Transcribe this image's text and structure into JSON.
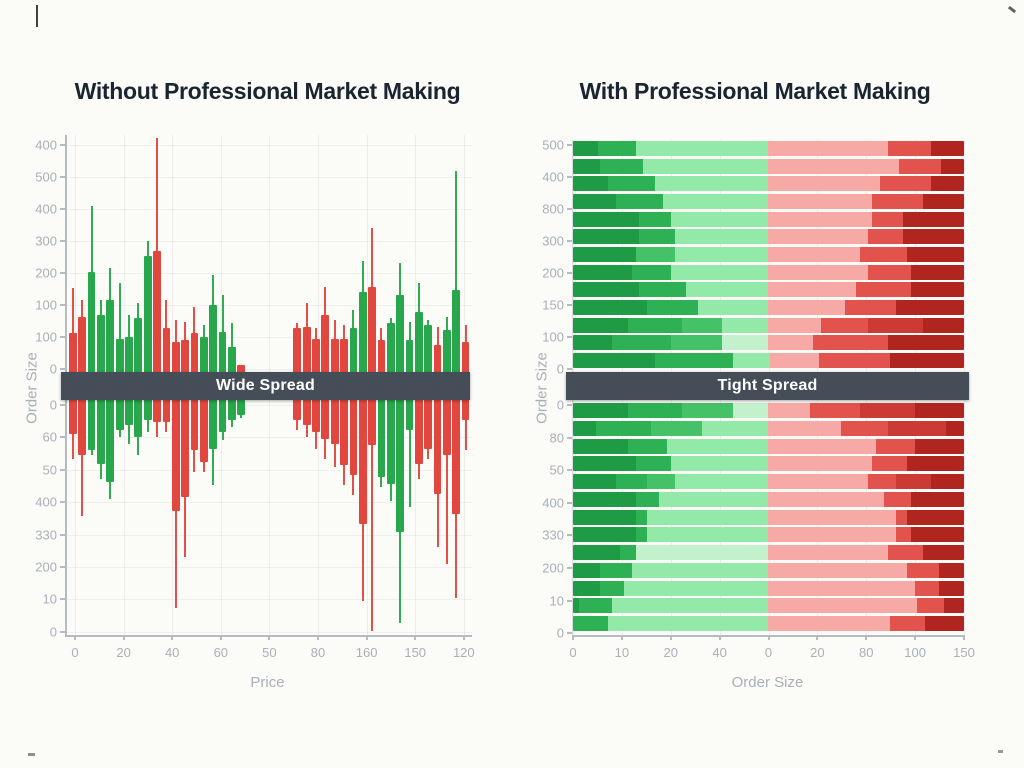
{
  "figure": {
    "background": "#fbfbf8",
    "band_color": "#454d58",
    "title_color": "#1b2530",
    "axis_text_color": "#a9b0b8"
  },
  "chart_data": [
    {
      "type": "bar",
      "orientation": "vertical-mirrored-depth",
      "title": "Without Professional Market Making",
      "band_label": "Wide Spread",
      "xlabel": "Price",
      "ylabel": "Order Size",
      "x_ticks": [
        "0",
        "20",
        "40",
        "60",
        "50",
        "80",
        "160",
        "150",
        "120"
      ],
      "y_ticks_upper": [
        "400",
        "500",
        "400",
        "300",
        "200",
        "100",
        "100",
        "0"
      ],
      "y_ticks_lower": [
        "0",
        "60",
        "50",
        "400",
        "330",
        "200",
        "10",
        "0"
      ],
      "colors": {
        "g": "#28a74c",
        "r": "#e2473f"
      },
      "bars_above": [
        [
          "r",
          115,
          250
        ],
        [
          "r",
          165,
          215
        ],
        [
          "g",
          300,
          495
        ],
        [
          "g",
          170,
          215
        ],
        [
          "g",
          215,
          310
        ],
        [
          "g",
          100,
          265
        ],
        [
          "g",
          105,
          170
        ],
        [
          "g",
          160,
          205
        ],
        [
          "g",
          345,
          390
        ],
        [
          "r",
          360,
          700
        ],
        [
          "r",
          130,
          215
        ],
        [
          "r",
          90,
          155
        ],
        [
          "r",
          95,
          150
        ],
        [
          "r",
          115,
          195
        ],
        [
          "g",
          105,
          140
        ],
        [
          "g",
          200,
          290
        ],
        [
          "g",
          120,
          230
        ],
        [
          "g",
          75,
          145
        ],
        [
          "r",
          20,
          20
        ],
        null,
        null,
        null,
        null,
        null,
        [
          "r",
          130,
          145
        ],
        [
          "r",
          135,
          205
        ],
        [
          "r",
          100,
          130
        ],
        [
          "r",
          170,
          255
        ],
        [
          "r",
          100,
          155
        ],
        [
          "r",
          100,
          140
        ],
        [
          "g",
          130,
          185
        ],
        [
          "g",
          240,
          330
        ],
        [
          "r",
          255,
          430
        ],
        [
          "r",
          95,
          130
        ],
        [
          "g",
          145,
          160
        ],
        [
          "g",
          230,
          325
        ],
        [
          "g",
          95,
          150
        ],
        [
          "g",
          180,
          265
        ],
        [
          "g",
          140,
          155
        ],
        [
          "r",
          80,
          135
        ],
        [
          "g",
          125,
          165
        ],
        [
          "g",
          245,
          600
        ],
        [
          "r",
          90,
          140
        ]
      ],
      "bars_below": [
        [
          "r",
          100,
          175
        ],
        [
          "r",
          165,
          345
        ],
        [
          "g",
          150,
          165
        ],
        [
          "g",
          190,
          235
        ],
        [
          "g",
          245,
          295
        ],
        [
          "g",
          90,
          110
        ],
        [
          "g",
          75,
          130
        ],
        [
          "g",
          110,
          165
        ],
        [
          "g",
          60,
          95
        ],
        [
          "r",
          65,
          110
        ],
        [
          "r",
          65,
          95
        ],
        [
          "r",
          330,
          620
        ],
        [
          "r",
          290,
          470
        ],
        [
          "r",
          150,
          215
        ],
        [
          "r",
          185,
          215
        ],
        [
          "g",
          145,
          255
        ],
        [
          "g",
          95,
          120
        ],
        [
          "g",
          60,
          80
        ],
        [
          "g",
          45,
          55
        ],
        null,
        null,
        null,
        null,
        null,
        [
          "r",
          60,
          90
        ],
        [
          "r",
          75,
          110
        ],
        [
          "r",
          95,
          145
        ],
        [
          "r",
          115,
          175
        ],
        [
          "r",
          130,
          200
        ],
        [
          "r",
          195,
          255
        ],
        [
          "r",
          225,
          285
        ],
        [
          "r",
          370,
          600
        ],
        [
          "r",
          135,
          690
        ],
        [
          "g",
          230,
          260
        ],
        [
          "g",
          250,
          300
        ],
        [
          "g",
          395,
          665
        ],
        [
          "g",
          90,
          320
        ],
        [
          "r",
          190,
          235
        ],
        [
          "r",
          145,
          175
        ],
        [
          "r",
          280,
          440
        ],
        [
          "r",
          165,
          490
        ],
        [
          "r",
          340,
          590
        ],
        [
          "r",
          60,
          150
        ]
      ]
    },
    {
      "type": "bar",
      "orientation": "horizontal-stacked",
      "title": "With Professional Market Making",
      "band_label": "Tight Spread",
      "xlabel": "Order Size",
      "ylabel": "Order Size",
      "x_ticks": [
        "0",
        "10",
        "20",
        "40",
        "0",
        "20",
        "80",
        "100",
        "150"
      ],
      "y_ticks_upper": [
        "500",
        "400",
        "800",
        "300",
        "200",
        "150",
        "100",
        "0"
      ],
      "y_ticks_lower": [
        "0",
        "80",
        "50",
        "400",
        "330",
        "200",
        "10",
        "0"
      ],
      "palette": {
        "dg": "#1f9b46",
        "mg": "#2eb155",
        "mg2": "#45c168",
        "lg": "#93e9a7",
        "lg2": "#c2f1cb",
        "pk": "#f6a9a5",
        "mr": "#e2534d",
        "mr2": "#cc3a35",
        "dr": "#b0251f"
      },
      "bars_above": [
        [
          [
            "dg",
            6.5
          ],
          [
            "mg",
            9.5
          ],
          [
            "lg",
            34
          ],
          [
            "pk",
            30.5
          ],
          [
            "mr",
            11
          ],
          [
            "dr",
            8.5
          ]
        ],
        [
          [
            "dg",
            7
          ],
          [
            "mg",
            11
          ],
          [
            "lg",
            32
          ],
          [
            "pk",
            33.5
          ],
          [
            "mr",
            10.5
          ],
          [
            "dr",
            6
          ]
        ],
        [
          [
            "dg",
            9
          ],
          [
            "mg",
            12
          ],
          [
            "lg",
            29
          ],
          [
            "pk",
            28.5
          ],
          [
            "mr",
            13
          ],
          [
            "dr",
            8.5
          ]
        ],
        [
          [
            "dg",
            11
          ],
          [
            "mg",
            12
          ],
          [
            "lg",
            27
          ],
          [
            "pk",
            26.5
          ],
          [
            "mr",
            13
          ],
          [
            "dr",
            10.5
          ]
        ],
        [
          [
            "dg",
            17
          ],
          [
            "mg",
            8
          ],
          [
            "lg",
            25
          ],
          [
            "pk",
            26.5
          ],
          [
            "mr",
            8
          ],
          [
            "dr",
            15.5
          ]
        ],
        [
          [
            "dg",
            17
          ],
          [
            "mg",
            9
          ],
          [
            "lg",
            24
          ],
          [
            "pk",
            25.5
          ],
          [
            "mr",
            9
          ],
          [
            "dr",
            15.5
          ]
        ],
        [
          [
            "dg",
            16
          ],
          [
            "mg2",
            10
          ],
          [
            "lg",
            24
          ],
          [
            "pk",
            23.5
          ],
          [
            "mr",
            12
          ],
          [
            "dr",
            14.5
          ]
        ],
        [
          [
            "dg",
            15
          ],
          [
            "mg",
            10
          ],
          [
            "lg",
            25
          ],
          [
            "pk",
            25.5
          ],
          [
            "mr",
            11
          ],
          [
            "dr",
            13.5
          ]
        ],
        [
          [
            "dg",
            17
          ],
          [
            "mg",
            12
          ],
          [
            "lg",
            21
          ],
          [
            "pk",
            22.5
          ],
          [
            "mr",
            14
          ],
          [
            "dr",
            13.5
          ]
        ],
        [
          [
            "dg",
            19
          ],
          [
            "mg",
            13
          ],
          [
            "lg",
            18
          ],
          [
            "pk",
            19.5
          ],
          [
            "mr",
            13
          ],
          [
            "dr",
            17.5
          ]
        ],
        [
          [
            "dg",
            14
          ],
          [
            "mg",
            14
          ],
          [
            "mg2",
            10
          ],
          [
            "lg",
            12
          ],
          [
            "pk",
            13.5
          ],
          [
            "mr",
            12
          ],
          [
            "mr2",
            14
          ],
          [
            "dr",
            10.5
          ]
        ],
        [
          [
            "dg",
            10
          ],
          [
            "mg",
            15
          ],
          [
            "mg2",
            13
          ],
          [
            "lg2",
            12
          ],
          [
            "pk",
            11.5
          ],
          [
            "mr",
            19
          ],
          [
            "dr",
            19.5
          ]
        ],
        [
          [
            "dg",
            21
          ],
          [
            "mg",
            20
          ],
          [
            "lg",
            9.5
          ],
          [
            "pk",
            12.5
          ],
          [
            "mr",
            18
          ],
          [
            "dr",
            19
          ]
        ]
      ],
      "bars_below": [
        [
          [
            "dg",
            14
          ],
          [
            "mg",
            14
          ],
          [
            "mg2",
            13
          ],
          [
            "lg2",
            9
          ],
          [
            "pk",
            10.5
          ],
          [
            "mr",
            13
          ],
          [
            "mr2",
            14
          ],
          [
            "dr",
            12.5
          ]
        ],
        [
          [
            "dg",
            6
          ],
          [
            "mg",
            14
          ],
          [
            "mg2",
            13
          ],
          [
            "lg",
            17
          ],
          [
            "pk",
            18.5
          ],
          [
            "mr",
            12
          ],
          [
            "mr2",
            15
          ],
          [
            "dr",
            4.5
          ]
        ],
        [
          [
            "dg",
            14
          ],
          [
            "mg",
            10
          ],
          [
            "lg",
            26
          ],
          [
            "pk",
            27.5
          ],
          [
            "mr",
            10
          ],
          [
            "dr",
            12.5
          ]
        ],
        [
          [
            "dg",
            16
          ],
          [
            "mg",
            9
          ],
          [
            "lg",
            25
          ],
          [
            "pk",
            26.5
          ],
          [
            "mr",
            9
          ],
          [
            "dr",
            14.5
          ]
        ],
        [
          [
            "dg",
            11
          ],
          [
            "mg",
            8
          ],
          [
            "mg2",
            7
          ],
          [
            "lg",
            24
          ],
          [
            "pk",
            25.5
          ],
          [
            "mr",
            7
          ],
          [
            "mr2",
            9
          ],
          [
            "dr",
            8.5
          ]
        ],
        [
          [
            "dg",
            16
          ],
          [
            "mg",
            6
          ],
          [
            "lg",
            28
          ],
          [
            "pk",
            29.5
          ],
          [
            "mr",
            7
          ],
          [
            "dr",
            13.5
          ]
        ],
        [
          [
            "dg",
            16
          ],
          [
            "mg",
            3
          ],
          [
            "lg",
            31
          ],
          [
            "pk",
            32.5
          ],
          [
            "mr",
            3
          ],
          [
            "dr",
            14.5
          ]
        ],
        [
          [
            "dg",
            16
          ],
          [
            "mg",
            3
          ],
          [
            "lg",
            31
          ],
          [
            "pk",
            32.5
          ],
          [
            "mr",
            4
          ],
          [
            "dr",
            13.5
          ]
        ],
        [
          [
            "dg",
            12
          ],
          [
            "mg",
            4
          ],
          [
            "lg2",
            34
          ],
          [
            "pk",
            30.5
          ],
          [
            "mr",
            9
          ],
          [
            "dr",
            10.5
          ]
        ],
        [
          [
            "dg",
            7
          ],
          [
            "mg",
            8
          ],
          [
            "lg",
            35
          ],
          [
            "pk",
            35.5
          ],
          [
            "mr",
            8
          ],
          [
            "dr",
            6.5
          ]
        ],
        [
          [
            "dg",
            7
          ],
          [
            "mg",
            6
          ],
          [
            "lg",
            37
          ],
          [
            "pk",
            37.5
          ],
          [
            "mr",
            6
          ],
          [
            "dr",
            6.5
          ]
        ],
        [
          [
            "dg",
            1.5
          ],
          [
            "mg",
            8.5
          ],
          [
            "lg",
            40
          ],
          [
            "pk",
            38
          ],
          [
            "mr",
            7
          ],
          [
            "dr",
            5
          ]
        ],
        [
          [
            "mg",
            9
          ],
          [
            "lg",
            41
          ],
          [
            "pk",
            31
          ],
          [
            "mr",
            9
          ],
          [
            "dr",
            10
          ]
        ]
      ]
    }
  ]
}
